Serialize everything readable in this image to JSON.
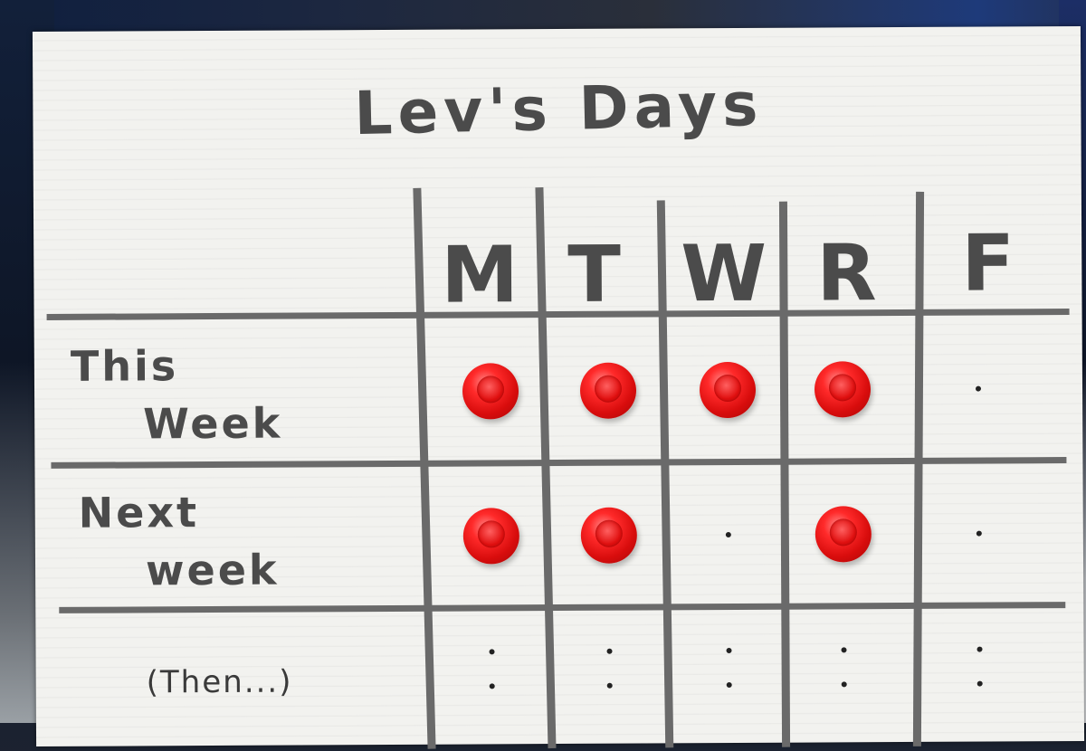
{
  "board": {
    "title": "Lev's Days",
    "days": [
      "M",
      "T",
      "W",
      "R",
      "F"
    ],
    "rows": [
      {
        "label_line1": "This",
        "label_line2": "Week",
        "pins": [
          true,
          true,
          true,
          true,
          false
        ]
      },
      {
        "label_line1": "Next",
        "label_line2": "week",
        "pins": [
          true,
          true,
          false,
          true,
          false
        ]
      },
      {
        "label": "(Then...)",
        "pins": [
          false,
          false,
          false,
          false,
          false
        ]
      }
    ]
  },
  "colors": {
    "board": "#f2f2ef",
    "ink": "#4b4b4b",
    "pin": "#e31414"
  }
}
